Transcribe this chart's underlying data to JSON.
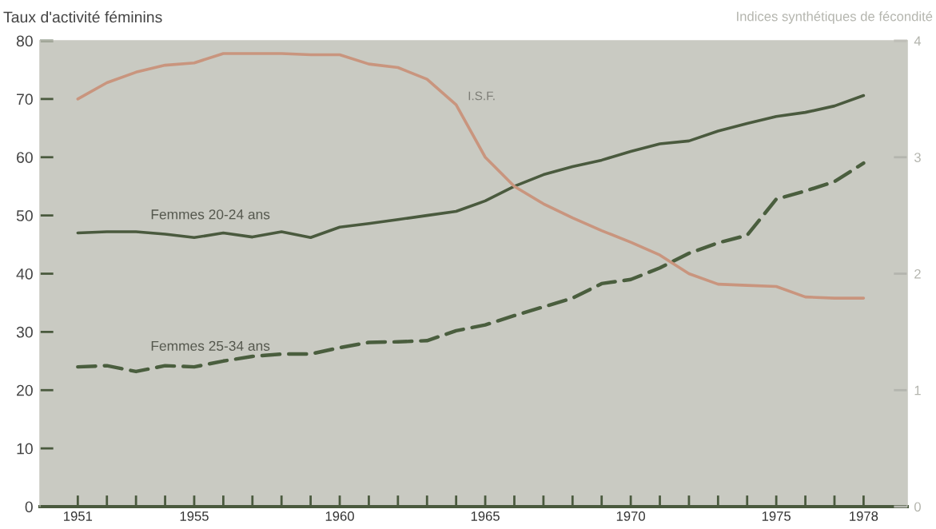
{
  "chart_data": {
    "type": "line",
    "ylabel": "Taux d'activité féminins",
    "y2label": "Indices synthétiques de fécondité",
    "x": [
      1951,
      1952,
      1953,
      1954,
      1955,
      1956,
      1957,
      1958,
      1959,
      1960,
      1961,
      1962,
      1963,
      1964,
      1965,
      1966,
      1967,
      1968,
      1969,
      1970,
      1971,
      1972,
      1973,
      1974,
      1975,
      1976,
      1977,
      1978
    ],
    "series": [
      {
        "name": "Femmes 20-24 ans",
        "color": "#4a5a3e",
        "line_style": "solid",
        "values": [
          47,
          47.2,
          47.2,
          46.8,
          46.2,
          47,
          46.3,
          47.2,
          46.2,
          48,
          48.6,
          49.3,
          50,
          50.7,
          52.5,
          55,
          57,
          58.4,
          59.5,
          61,
          62.3,
          62.8,
          64.5,
          65.8,
          67,
          67.7,
          68.8,
          70.6
        ]
      },
      {
        "name": "Femmes 25-34 ans",
        "color": "#4a5e3e",
        "line_style": "dashed",
        "values": [
          24,
          24.2,
          23.2,
          24.2,
          24,
          25,
          25.8,
          26.2,
          26.2,
          27.3,
          28.2,
          28.3,
          28.5,
          30.2,
          31.2,
          32.8,
          34.3,
          35.8,
          38.3,
          39,
          41,
          43.5,
          45.3,
          46.6,
          52.8,
          54.2,
          55.8,
          59
        ]
      },
      {
        "name": "I.S.F.",
        "color": "#c9957e",
        "line_style": "solid",
        "axis": "y2",
        "values": [
          3.5,
          3.64,
          3.73,
          3.79,
          3.81,
          3.89,
          3.89,
          3.89,
          3.88,
          3.88,
          3.8,
          3.77,
          3.67,
          3.45,
          3.0,
          2.75,
          2.6,
          2.48,
          2.37,
          2.27,
          2.16,
          2.0,
          1.91,
          1.9,
          1.89,
          1.8,
          1.79,
          1.79
        ]
      }
    ],
    "xlim": [
      1949.7,
      1979.5
    ],
    "xticks": [
      1951,
      {
        "value": 1952,
        "label": null
      },
      {
        "value": 1953,
        "label": null
      },
      {
        "value": 1954,
        "label": null
      },
      1955,
      {
        "value": 1956,
        "label": null
      },
      {
        "value": 1957,
        "label": null
      },
      {
        "value": 1958,
        "label": null
      },
      {
        "value": 1959,
        "label": null
      },
      1960,
      {
        "value": 1961,
        "label": null
      },
      {
        "value": 1962,
        "label": null
      },
      {
        "value": 1963,
        "label": null
      },
      {
        "value": 1964,
        "label": null
      },
      1965,
      {
        "value": 1966,
        "label": null
      },
      {
        "value": 1967,
        "label": null
      },
      {
        "value": 1968,
        "label": null
      },
      {
        "value": 1969,
        "label": null
      },
      1970,
      {
        "value": 1971,
        "label": null
      },
      {
        "value": 1972,
        "label": null
      },
      {
        "value": 1973,
        "label": null
      },
      {
        "value": 1974,
        "label": null
      },
      1975,
      {
        "value": 1976,
        "label": null
      },
      {
        "value": 1977,
        "label": null
      },
      1978
    ],
    "ylim": [
      0,
      80
    ],
    "yticks": [
      0,
      10,
      20,
      30,
      40,
      50,
      60,
      70,
      80
    ],
    "y2lim": [
      0,
      4
    ],
    "y2ticks": [
      0,
      1,
      2,
      3,
      4
    ],
    "grid": false,
    "legend": false,
    "marker": "none"
  }
}
